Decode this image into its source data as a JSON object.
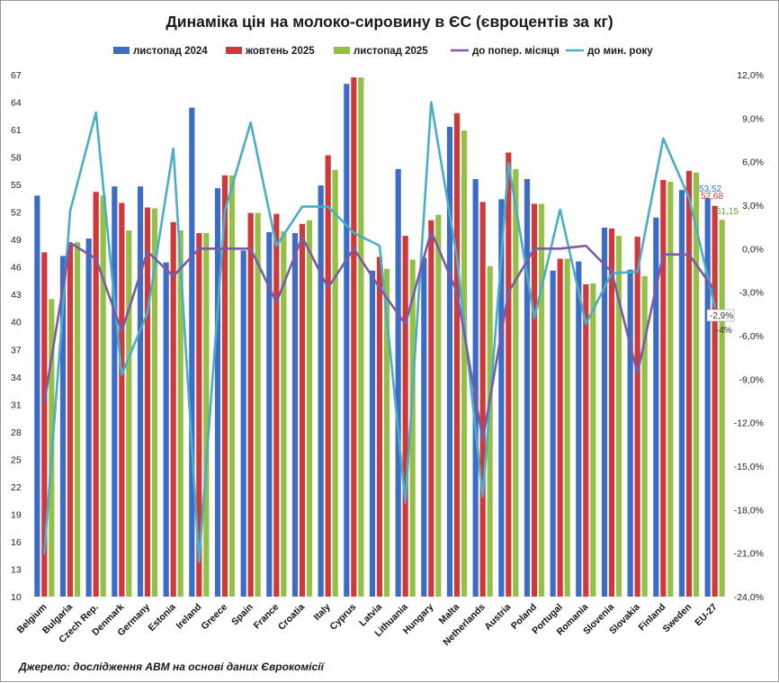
{
  "chart_data": {
    "type": "bar",
    "title": "Динаміка цін на молоко-сировину в ЄС (євроцентів за кг)",
    "source": "Джерело: дослідження АВМ на основі даних Єврокомісії",
    "categories": [
      "Belgium",
      "Bulgaria",
      "Czech Rep.",
      "Denmark",
      "Germany",
      "Estonia",
      "Ireland",
      "Greece",
      "Spain",
      "France",
      "Croatia",
      "Italy",
      "Cyprus",
      "Latvia",
      "Lithuania",
      "Hungary",
      "Malta",
      "Netherlands",
      "Austria",
      "Poland",
      "Portugal",
      "Romania",
      "Slovenia",
      "Slovakia",
      "Finland",
      "Sweden",
      "EU-27"
    ],
    "left_axis": {
      "min": 10,
      "max": 67,
      "ticks": [
        "10",
        "13",
        "16",
        "19",
        "22",
        "25",
        "28",
        "31",
        "34",
        "37",
        "40",
        "43",
        "46",
        "49",
        "52",
        "55",
        "58",
        "61",
        "64",
        "67"
      ]
    },
    "right_axis": {
      "min": -24,
      "max": 12,
      "ticks": [
        "-24,0%",
        "-21,0%",
        "-18,0%",
        "-15,0%",
        "-12,0%",
        "-9,0%",
        "-6,0%",
        "-3,0%",
        "0,0%",
        "3,0%",
        "6,0%",
        "9,0%",
        "12,0%"
      ]
    },
    "bar_series": [
      {
        "name": "листопад 2024",
        "color": "#3B6CC6",
        "values": [
          53.8,
          47.2,
          49.1,
          54.8,
          54.8,
          46.5,
          63.4,
          54.6,
          47.8,
          49.8,
          49.7,
          54.9,
          66.0,
          45.6,
          56.7,
          47.0,
          61.3,
          55.6,
          53.4,
          55.6,
          45.6,
          46.6,
          50.3,
          45.7,
          51.4,
          54.4,
          53.52
        ]
      },
      {
        "name": "жовтень 2025",
        "color": "#D0393B",
        "values": [
          47.6,
          48.5,
          54.2,
          53.0,
          52.5,
          50.9,
          49.7,
          56.0,
          51.9,
          51.8,
          50.7,
          58.2,
          66.7,
          47.1,
          49.4,
          51.1,
          62.8,
          53.1,
          58.5,
          52.9,
          46.9,
          44.1,
          50.2,
          49.3,
          55.5,
          56.5,
          52.68
        ]
      },
      {
        "name": "листопад 2025",
        "color": "#93C047",
        "values": [
          42.5,
          48.7,
          53.8,
          50.0,
          52.4,
          50.0,
          49.7,
          56.0,
          51.9,
          49.9,
          51.1,
          56.6,
          66.7,
          45.8,
          46.8,
          51.7,
          60.9,
          46.1,
          56.7,
          52.9,
          46.9,
          44.2,
          49.4,
          45.0,
          55.3,
          56.3,
          51.15
        ]
      }
    ],
    "line_series": [
      {
        "name": "до попер. місяця",
        "color": "#7B5AA6",
        "values": [
          -10.6,
          0.4,
          -0.7,
          -5.7,
          -0.2,
          -1.9,
          0.0,
          0.0,
          0.0,
          -3.7,
          0.8,
          -2.7,
          0.0,
          -2.7,
          -5.2,
          1.2,
          -3.0,
          -13.2,
          -3.0,
          0.0,
          0.0,
          0.2,
          -1.6,
          -8.6,
          -0.4,
          -0.4,
          -2.9
        ]
      },
      {
        "name": "до мин. року",
        "color": "#4BADC6",
        "values": [
          -21.0,
          2.6,
          9.4,
          -8.7,
          -4.4,
          6.9,
          -21.6,
          2.6,
          8.7,
          0.2,
          2.9,
          2.9,
          1.1,
          0.2,
          -17.5,
          10.1,
          -0.6,
          -17.1,
          5.9,
          -4.8,
          2.7,
          -5.2,
          -1.7,
          -1.6,
          7.6,
          3.5,
          -4.0
        ]
      }
    ],
    "data_labels": {
      "nov2024": "53,52",
      "oct2025": "52,68",
      "nov2025": "51,15",
      "mom": "-2,9%",
      "yoy": "-4%"
    }
  }
}
